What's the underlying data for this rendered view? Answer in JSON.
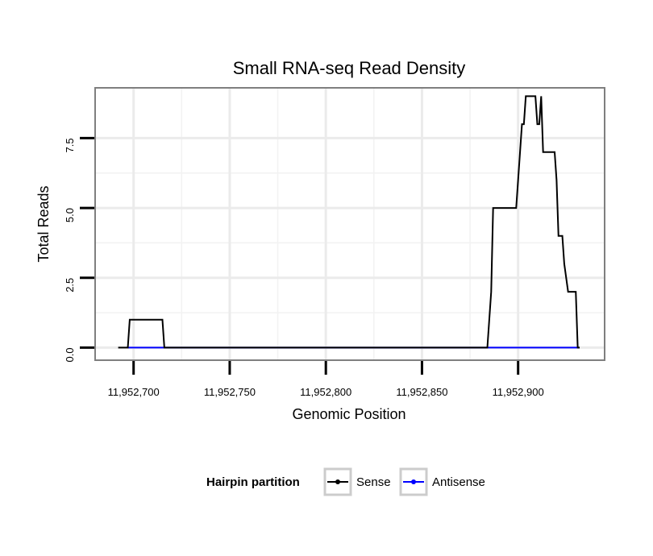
{
  "chart_data": {
    "type": "line",
    "title": "Small RNA-seq Read Density",
    "xlabel": "Genomic Position",
    "ylabel": "Total Reads",
    "xlim": [
      11952680,
      11952945
    ],
    "ylim": [
      -0.45,
      9.3
    ],
    "x_ticks": [
      11952700,
      11952750,
      11952800,
      11952850,
      11952900
    ],
    "x_tick_labels": [
      "11,952,700",
      "11,952,750",
      "11,952,800",
      "11,952,850",
      "11,952,900"
    ],
    "y_ticks": [
      0,
      2.5,
      5,
      7.5
    ],
    "y_tick_labels": [
      "0.0",
      "2.5",
      "5.0",
      "7.5"
    ],
    "grid": true,
    "legend_title": "Hairpin partition",
    "legend_position": "bottom",
    "series": [
      {
        "name": "Sense",
        "color": "#000000",
        "x": [
          11952692,
          11952697,
          11952698,
          11952715,
          11952716,
          11952884,
          11952886,
          11952887,
          11952899,
          11952900,
          11952902,
          11952903,
          11952904,
          11952905,
          11952909,
          11952910,
          11952911,
          11952912,
          11952913,
          11952919,
          11952920,
          11952921,
          11952923,
          11952924,
          11952926,
          11952930,
          11952931,
          11952932
        ],
        "y": [
          0,
          0,
          1,
          1,
          0,
          0,
          2,
          5,
          5,
          6,
          8,
          8,
          9,
          9,
          9,
          8,
          8,
          9,
          7,
          7,
          6,
          4,
          4,
          3,
          2,
          2,
          0,
          0
        ]
      },
      {
        "name": "Antisense",
        "color": "#0000ff",
        "x": [
          11952697,
          11952932
        ],
        "y": [
          0,
          0
        ]
      }
    ]
  }
}
